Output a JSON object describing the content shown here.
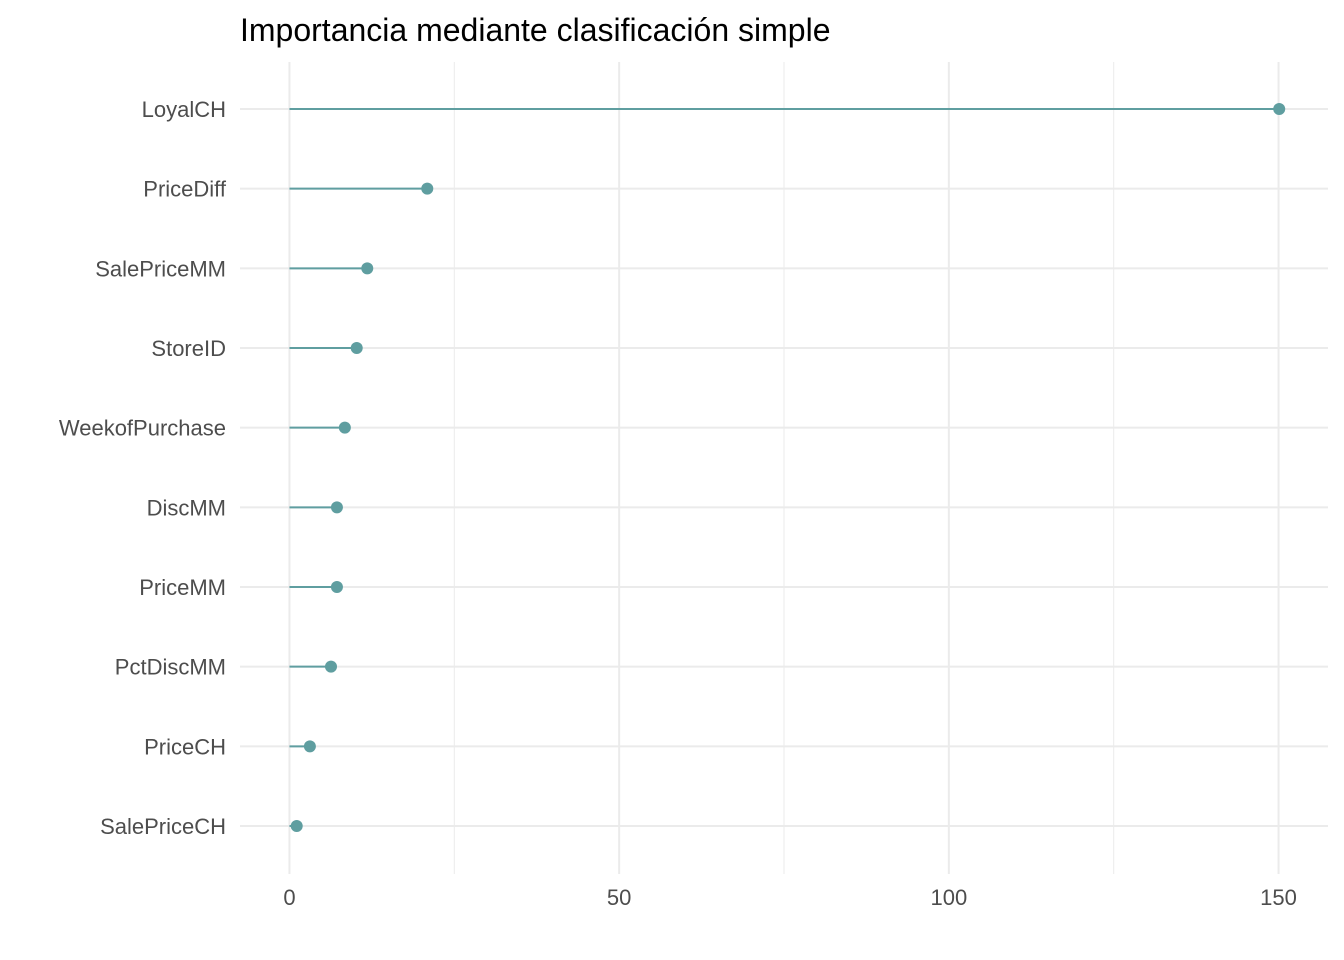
{
  "chart_data": {
    "type": "lollipop",
    "title": "Importancia mediante clasificación simple",
    "xlabel": "",
    "ylabel": "",
    "categories": [
      "LoyalCH",
      "PriceDiff",
      "SalePriceMM",
      "StoreID",
      "WeekofPurchase",
      "DiscMM",
      "PriceMM",
      "PctDiscMM",
      "PriceCH",
      "SalePriceCH"
    ],
    "values": [
      150.1,
      20.9,
      11.8,
      10.2,
      8.4,
      7.2,
      7.2,
      6.3,
      3.1,
      1.1
    ],
    "xlim": [
      -7.5,
      157.5
    ],
    "xticks": [
      0,
      50,
      100,
      150
    ],
    "xtick_labels": [
      "0",
      "50",
      "100",
      "150"
    ],
    "grid": true,
    "color": "#5f9ea0",
    "grid_color": "#ebebeb"
  }
}
